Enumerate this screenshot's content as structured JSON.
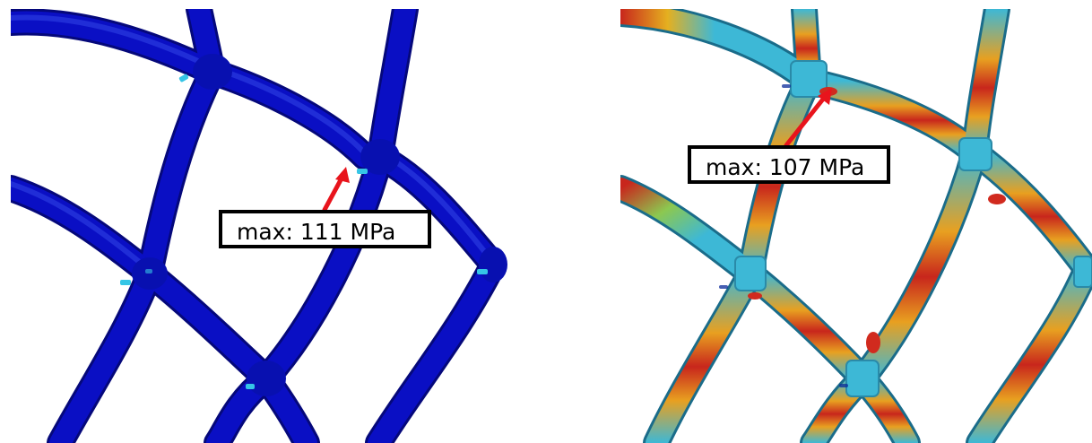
{
  "panels": [
    {
      "id": "uniform-stress",
      "max_label": "max: 111 MPa",
      "strut_color": "#0A0FC4",
      "hotspot_color": "#35C5E6"
    },
    {
      "id": "graded-stress",
      "max_label": "max: 107 MPa",
      "strut_color": "#3DB8D6",
      "hotspot_color": "#D12A1E"
    }
  ],
  "colors": {
    "arrow": "#E8141C",
    "callout_border": "#000000",
    "background": "#FFFFFF"
  }
}
